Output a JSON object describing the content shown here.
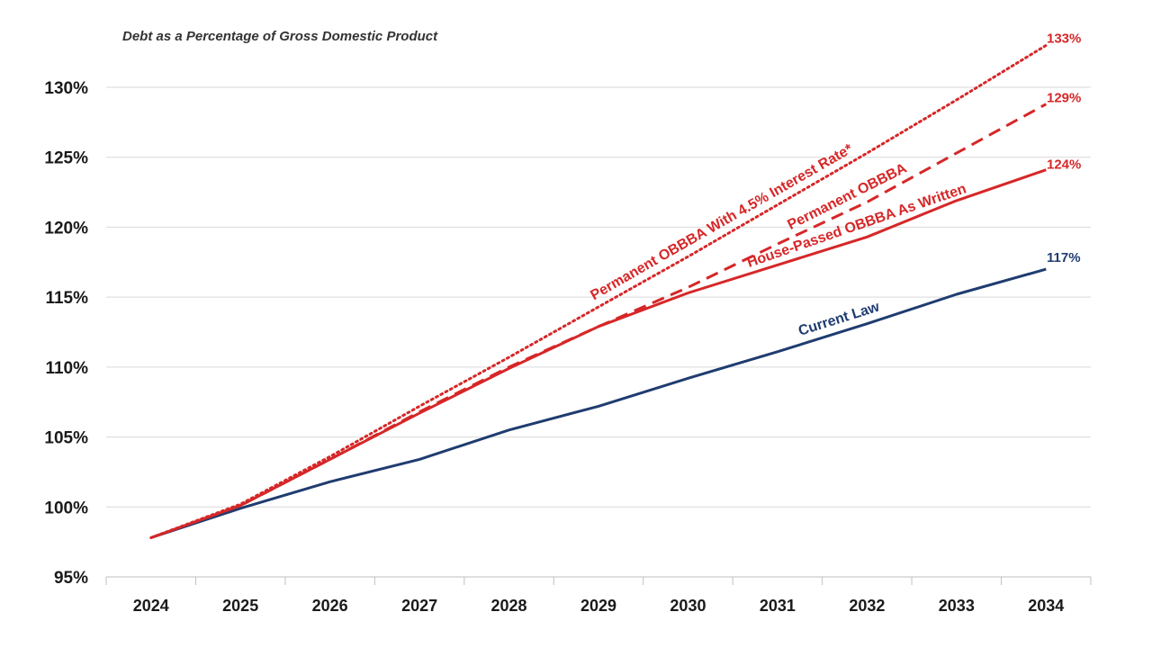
{
  "chart_data": {
    "type": "line",
    "title": "Debt as a Percentage of Gross Domestic Product",
    "x": [
      2024,
      2025,
      2026,
      2027,
      2028,
      2029,
      2030,
      2031,
      2032,
      2033,
      2034
    ],
    "x_tick_labels": [
      "2024",
      "2025",
      "2026",
      "2027",
      "2028",
      "2029",
      "2030",
      "2031",
      "2032",
      "2033",
      "2034"
    ],
    "ylim": [
      95,
      133
    ],
    "y_ticks": [
      95,
      100,
      105,
      110,
      115,
      120,
      125,
      130
    ],
    "y_tick_labels": [
      "95%",
      "100%",
      "105%",
      "110%",
      "115%",
      "120%",
      "125%",
      "130%"
    ],
    "grid": true,
    "series": [
      {
        "name": "Permanent OBBBA With 4.5% Interest Rate*",
        "values": [
          97.8,
          100.2,
          103.6,
          107.2,
          110.7,
          114.3,
          117.9,
          121.6,
          125.3,
          129.1,
          133.0
        ],
        "color": "#d62728",
        "style": "dotted",
        "end_label": "133%"
      },
      {
        "name": "Permanent OBBBA",
        "values": [
          97.8,
          100.1,
          103.4,
          106.8,
          110.0,
          112.9,
          115.7,
          118.8,
          121.8,
          125.3,
          128.8
        ],
        "color": "#d62728",
        "style": "dashed",
        "end_label": "129%"
      },
      {
        "name": "House-Passed OBBBA As Written",
        "values": [
          97.8,
          100.1,
          103.4,
          106.7,
          109.9,
          112.9,
          115.3,
          117.3,
          119.3,
          121.9,
          124.1
        ],
        "color": "#d62728",
        "style": "solid",
        "end_label": "124%"
      },
      {
        "name": "Current Law",
        "values": [
          97.8,
          99.9,
          101.8,
          103.4,
          105.5,
          107.2,
          109.2,
          111.1,
          113.1,
          115.2,
          117.0
        ],
        "color": "#1f3c70",
        "style": "solid",
        "end_label": "117%"
      }
    ]
  }
}
